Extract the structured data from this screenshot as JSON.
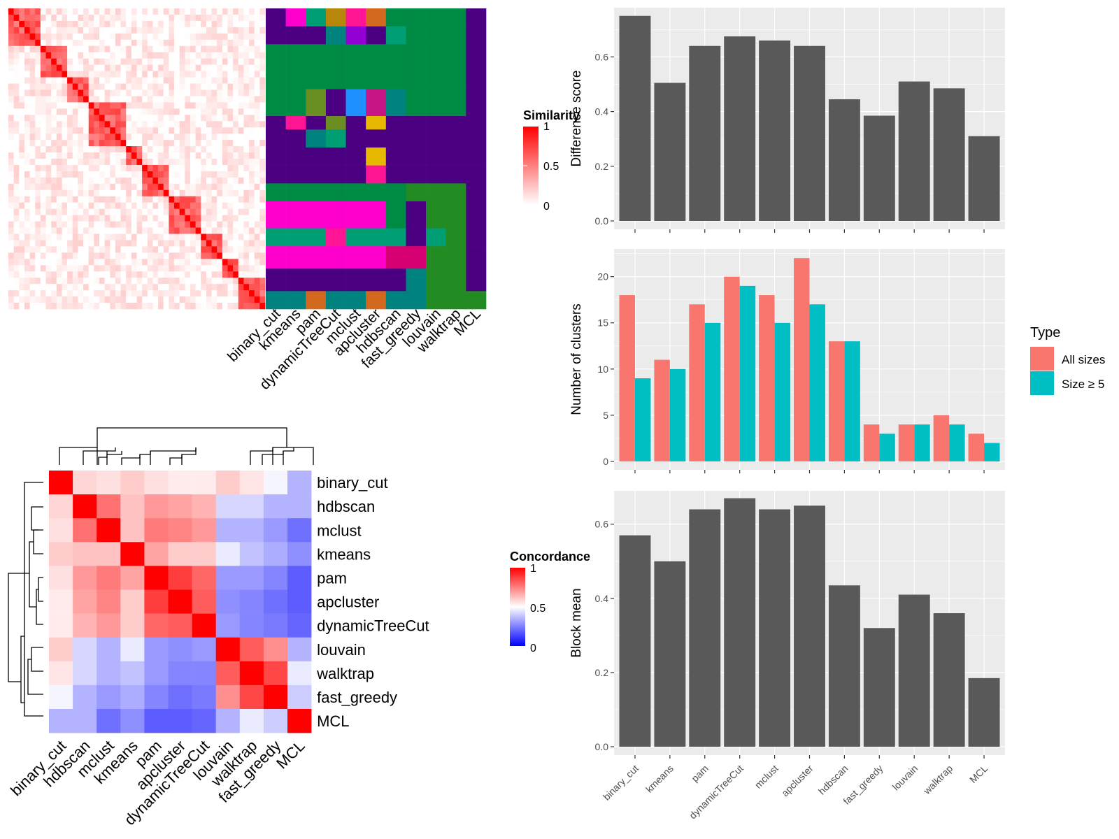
{
  "colors": {
    "similarity_low": "#ffffff",
    "similarity_high": "#ff0000",
    "concordance_low": "#0000ff",
    "concordance_mid": "#ffffff",
    "concordance_high": "#ff0000",
    "bar_fill": "#595959",
    "panel_bg": "#ebebeb",
    "grid": "#ffffff",
    "all_sizes": "#f8766d",
    "size_ge5": "#00bfc4"
  },
  "chart_data": [
    {
      "type": "heatmap",
      "id": "similarity-heatmap",
      "n": 48,
      "legend_title": "Similarity",
      "legend_ticks": [
        "1",
        "0.5",
        "0"
      ],
      "clusters": [
        6,
        5,
        4,
        7,
        3,
        5,
        6,
        4,
        3,
        5
      ],
      "within_similarity": 0.62,
      "between_similarity": 0.06
    },
    {
      "type": "table",
      "id": "partition-matrix",
      "columns": [
        "binary_cut",
        "kmeans",
        "pam",
        "dynamicTreeCut",
        "mclust",
        "apcluster",
        "hdbscan",
        "fast_greedy",
        "louvain",
        "walktrap",
        "MCL"
      ],
      "palette": [
        "#008b45",
        "#4b0082",
        "#ff00cc",
        "#009e73",
        "#b8860b",
        "#ff1493",
        "#d2691e",
        "#00827f",
        "#9400d3",
        "#1e90ff",
        "#2e8b57",
        "#c71585",
        "#6b8e23",
        "#e6b800",
        "#a0522d",
        "#009b80",
        "#228b22",
        "#d60072",
        "#3cb371",
        "#483d8b"
      ],
      "rows": [
        {
          "span": 4,
          "labels": [
            1,
            2,
            3,
            4,
            5,
            6,
            0,
            0,
            0,
            0,
            1
          ]
        },
        {
          "span": 4,
          "labels": [
            1,
            1,
            1,
            7,
            8,
            1,
            3,
            0,
            0,
            0,
            1
          ]
        },
        {
          "span": 10,
          "labels": [
            0,
            0,
            0,
            0,
            0,
            0,
            0,
            0,
            0,
            0,
            1
          ]
        },
        {
          "span": 6,
          "labels": [
            0,
            0,
            12,
            1,
            9,
            11,
            7,
            0,
            0,
            0,
            1
          ]
        },
        {
          "span": 3,
          "labels": [
            1,
            5,
            1,
            12,
            1,
            13,
            1,
            1,
            1,
            1,
            1
          ]
        },
        {
          "span": 4,
          "labels": [
            1,
            1,
            7,
            3,
            1,
            1,
            1,
            1,
            1,
            1,
            1
          ]
        },
        {
          "span": 4,
          "labels": [
            1,
            1,
            1,
            1,
            1,
            13,
            1,
            1,
            1,
            1,
            1
          ]
        },
        {
          "span": 4,
          "labels": [
            1,
            1,
            1,
            1,
            1,
            5,
            1,
            1,
            1,
            1,
            1
          ]
        },
        {
          "span": 4,
          "labels": [
            0,
            0,
            0,
            0,
            0,
            0,
            0,
            16,
            16,
            16,
            1
          ]
        },
        {
          "span": 6,
          "labels": [
            2,
            2,
            2,
            2,
            2,
            2,
            0,
            1,
            16,
            16,
            1
          ]
        },
        {
          "span": 4,
          "labels": [
            3,
            3,
            3,
            5,
            3,
            3,
            3,
            1,
            3,
            16,
            1
          ]
        },
        {
          "span": 5,
          "labels": [
            2,
            2,
            2,
            2,
            2,
            2,
            17,
            17,
            16,
            16,
            1
          ]
        },
        {
          "span": 5,
          "labels": [
            1,
            1,
            1,
            1,
            1,
            1,
            1,
            7,
            16,
            16,
            1
          ]
        },
        {
          "span": 4,
          "labels": [
            7,
            7,
            6,
            7,
            7,
            6,
            7,
            7,
            16,
            16,
            16
          ]
        }
      ]
    },
    {
      "type": "heatmap",
      "id": "concordance-heatmap",
      "legend_title": "Concordance",
      "legend_ticks": [
        "1",
        "0.5",
        "0"
      ],
      "labels": [
        "binary_cut",
        "hdbscan",
        "mclust",
        "kmeans",
        "pam",
        "apcluster",
        "dynamicTreeCut",
        "louvain",
        "walktrap",
        "fast_greedy",
        "MCL"
      ],
      "values": [
        [
          1.0,
          0.58,
          0.56,
          0.6,
          0.56,
          0.54,
          0.54,
          0.6,
          0.55,
          0.48,
          0.35
        ],
        [
          0.58,
          1.0,
          0.78,
          0.62,
          0.7,
          0.68,
          0.65,
          0.42,
          0.42,
          0.35,
          0.35
        ],
        [
          0.56,
          0.78,
          1.0,
          0.62,
          0.76,
          0.74,
          0.7,
          0.35,
          0.35,
          0.3,
          0.22
        ],
        [
          0.6,
          0.62,
          0.62,
          1.0,
          0.68,
          0.6,
          0.6,
          0.46,
          0.38,
          0.34,
          0.28
        ],
        [
          0.56,
          0.7,
          0.76,
          0.68,
          1.0,
          0.88,
          0.8,
          0.3,
          0.3,
          0.26,
          0.18
        ],
        [
          0.54,
          0.68,
          0.74,
          0.6,
          0.88,
          1.0,
          0.82,
          0.28,
          0.26,
          0.22,
          0.18
        ],
        [
          0.54,
          0.65,
          0.7,
          0.6,
          0.8,
          0.82,
          1.0,
          0.3,
          0.26,
          0.24,
          0.2
        ],
        [
          0.6,
          0.42,
          0.35,
          0.46,
          0.3,
          0.28,
          0.3,
          1.0,
          0.82,
          0.72,
          0.35
        ],
        [
          0.55,
          0.42,
          0.35,
          0.38,
          0.3,
          0.26,
          0.26,
          0.82,
          1.0,
          0.86,
          0.46
        ],
        [
          0.48,
          0.35,
          0.3,
          0.34,
          0.26,
          0.22,
          0.24,
          0.72,
          0.86,
          1.0,
          0.4
        ],
        [
          0.35,
          0.35,
          0.22,
          0.28,
          0.18,
          0.18,
          0.2,
          0.35,
          0.46,
          0.4,
          1.0
        ]
      ]
    },
    {
      "type": "bar",
      "id": "difference-score",
      "categories": [
        "binary_cut",
        "kmeans",
        "pam",
        "dynamicTreeCut",
        "mclust",
        "apcluster",
        "hdbscan",
        "fast_greedy",
        "louvain",
        "walktrap",
        "MCL"
      ],
      "values": [
        0.75,
        0.505,
        0.64,
        0.675,
        0.66,
        0.64,
        0.445,
        0.385,
        0.51,
        0.485,
        0.31
      ],
      "ylabel": "Difference score",
      "ylim": [
        0,
        0.78
      ],
      "yticks": [
        "0.0",
        "0.2",
        "0.4",
        "0.6"
      ]
    },
    {
      "type": "bar",
      "id": "number-of-clusters",
      "categories": [
        "binary_cut",
        "kmeans",
        "pam",
        "dynamicTreeCut",
        "mclust",
        "apcluster",
        "hdbscan",
        "fast_greedy",
        "louvain",
        "walktrap",
        "MCL"
      ],
      "series": [
        {
          "name": "All sizes",
          "values": [
            18,
            11,
            17,
            20,
            18,
            22,
            13,
            4,
            4,
            5,
            3
          ]
        },
        {
          "name": "Size ≥ 5",
          "values": [
            9,
            10,
            15,
            19,
            15,
            17,
            13,
            3,
            4,
            4,
            2
          ]
        }
      ],
      "ylabel": "Number of clusters",
      "ylim": [
        0,
        23
      ],
      "yticks": [
        "0",
        "5",
        "10",
        "15",
        "20"
      ],
      "legend_title": "Type",
      "legend_placement": "right"
    },
    {
      "type": "bar",
      "id": "block-mean",
      "categories": [
        "binary_cut",
        "kmeans",
        "pam",
        "dynamicTreeCut",
        "mclust",
        "apcluster",
        "hdbscan",
        "fast_greedy",
        "louvain",
        "walktrap",
        "MCL"
      ],
      "values": [
        0.57,
        0.5,
        0.64,
        0.67,
        0.64,
        0.65,
        0.435,
        0.32,
        0.41,
        0.36,
        0.185
      ],
      "ylabel": "Block mean",
      "ylim": [
        0,
        0.69
      ],
      "yticks": [
        "0.0",
        "0.2",
        "0.4",
        "0.6"
      ]
    }
  ]
}
